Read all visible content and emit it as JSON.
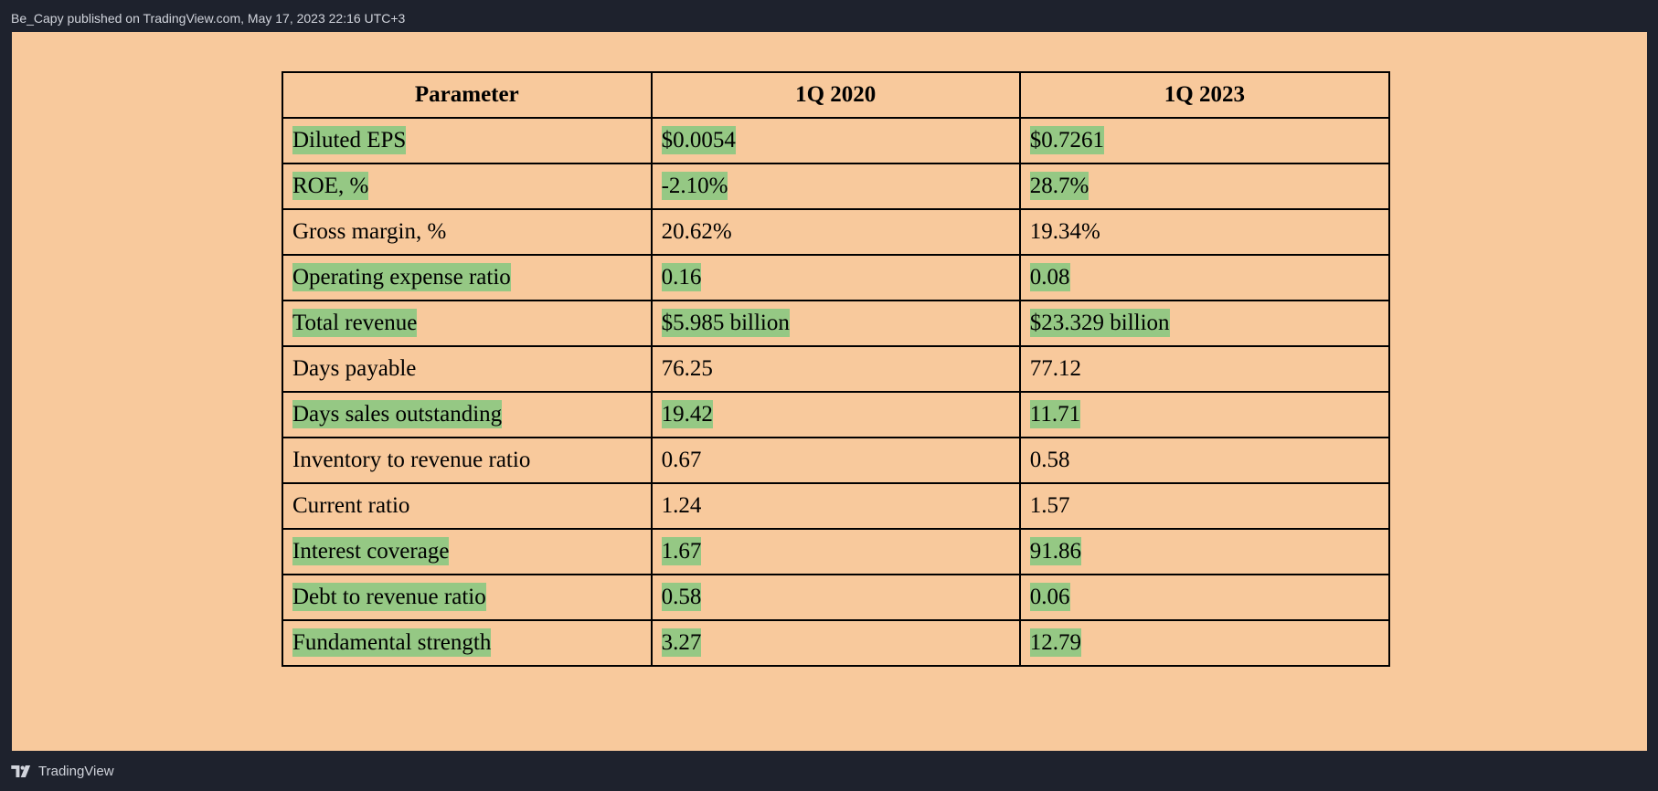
{
  "header": {
    "publish_line": "Be_Capy published on TradingView.com, May 17, 2023 22:16 UTC+3"
  },
  "table": {
    "columns": [
      "Parameter",
      "1Q 2020",
      "1Q 2023"
    ],
    "rows": [
      {
        "cells": [
          "Diluted EPS",
          "$0.0054",
          "$0.7261"
        ],
        "highlighted": true
      },
      {
        "cells": [
          "ROE, %",
          "-2.10%",
          "28.7%"
        ],
        "highlighted": true
      },
      {
        "cells": [
          "Gross margin, %",
          "20.62%",
          "19.34%"
        ],
        "highlighted": false
      },
      {
        "cells": [
          "Operating expense ratio",
          "0.16",
          "0.08"
        ],
        "highlighted": true
      },
      {
        "cells": [
          "Total revenue",
          "$5.985 billion",
          "$23.329 billion"
        ],
        "highlighted": true
      },
      {
        "cells": [
          "Days payable",
          "76.25",
          "77.12"
        ],
        "highlighted": false
      },
      {
        "cells": [
          "Days sales outstanding",
          "19.42",
          "11.71"
        ],
        "highlighted": true
      },
      {
        "cells": [
          "Inventory to revenue ratio",
          "0.67",
          "0.58"
        ],
        "highlighted": false
      },
      {
        "cells": [
          "Current ratio",
          "1.24",
          "1.57"
        ],
        "highlighted": false
      },
      {
        "cells": [
          "Interest coverage",
          "1.67",
          "91.86"
        ],
        "highlighted": true
      },
      {
        "cells": [
          "Debt to revenue ratio",
          "0.58",
          "0.06"
        ],
        "highlighted": true
      },
      {
        "cells": [
          "Fundamental strength",
          "3.27",
          "12.79"
        ],
        "highlighted": true
      }
    ]
  },
  "footer": {
    "brand": "TradingView",
    "logo_icon": "tradingview-logo-icon"
  },
  "colors": {
    "frame_bg": "#1e222d",
    "canvas_bg": "#f8c99c",
    "highlight": "#95c884"
  }
}
